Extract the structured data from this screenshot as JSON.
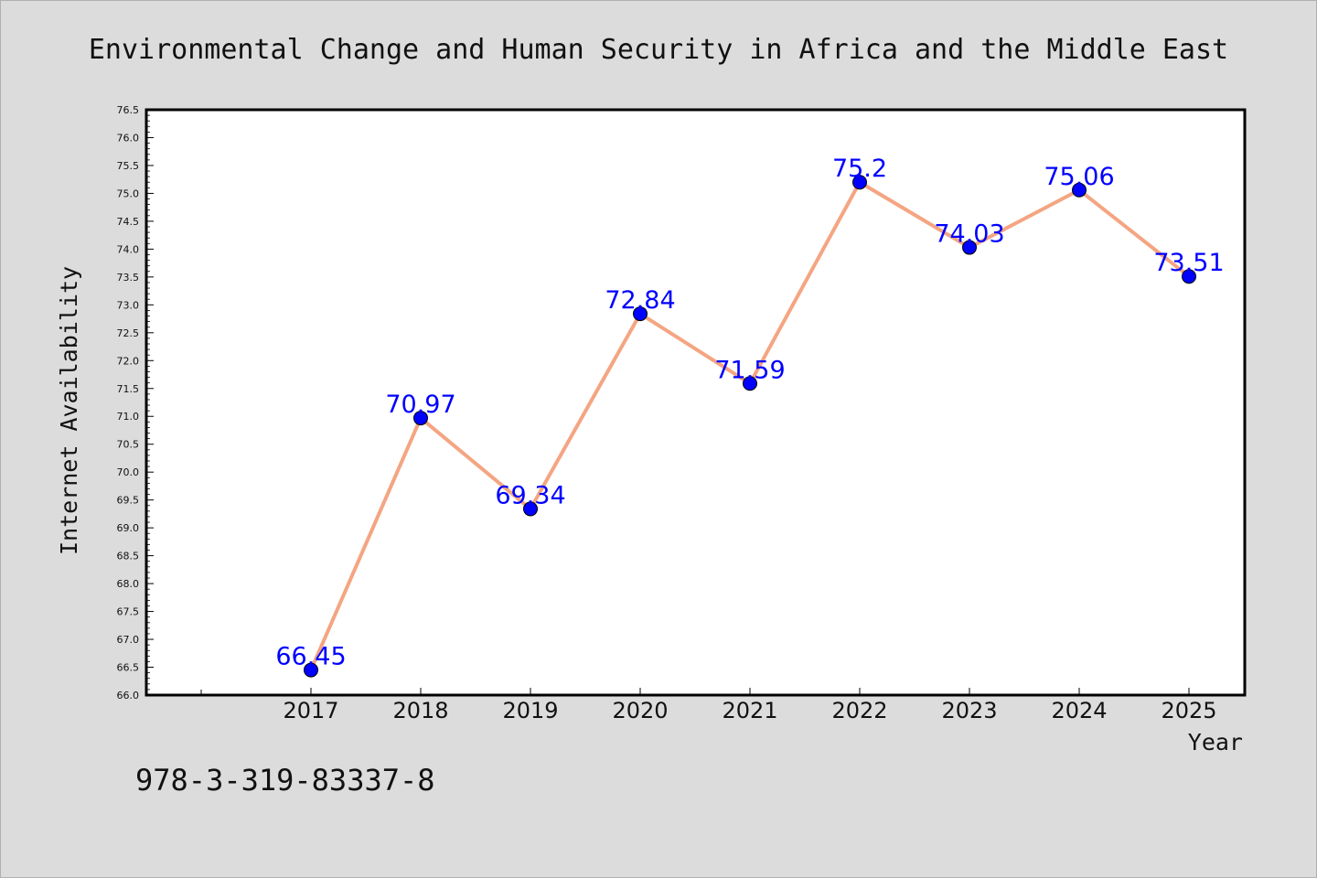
{
  "chart_data": {
    "type": "line",
    "title": "Environmental Change and Human Security in Africa and the Middle East",
    "xlabel": "Year",
    "ylabel": "Internet Availability",
    "x": [
      "2017",
      "2018",
      "2019",
      "2020",
      "2021",
      "2022",
      "2023",
      "2024",
      "2025"
    ],
    "series": [
      {
        "values": [
          66.45,
          70.97,
          69.34,
          72.84,
          71.59,
          75.2,
          74.03,
          75.06,
          73.51
        ],
        "data_labels": [
          "66.45",
          "70.97",
          "69.34",
          "72.84",
          "71.59",
          "75.2",
          "74.03",
          "75.06",
          "73.51"
        ]
      }
    ],
    "ylim": [
      66.0,
      76.5
    ],
    "yticks": [
      "66.0",
      "66.5",
      "67.0",
      "67.5",
      "68.0",
      "68.5",
      "69.0",
      "69.5",
      "70.0",
      "70.5",
      "71.0",
      "71.5",
      "72.0",
      "72.5",
      "73.0",
      "73.5",
      "74.0",
      "74.5",
      "75.0",
      "75.5",
      "76.0",
      "76.5"
    ],
    "grid": false,
    "colors": {
      "line": "#f4a582",
      "marker": "#0000ff",
      "data_label": "#0000ff",
      "background": "#dcdcdc",
      "plot_background": "#ffffff"
    }
  },
  "footer": {
    "isbn": "978-3-319-83337-8"
  }
}
